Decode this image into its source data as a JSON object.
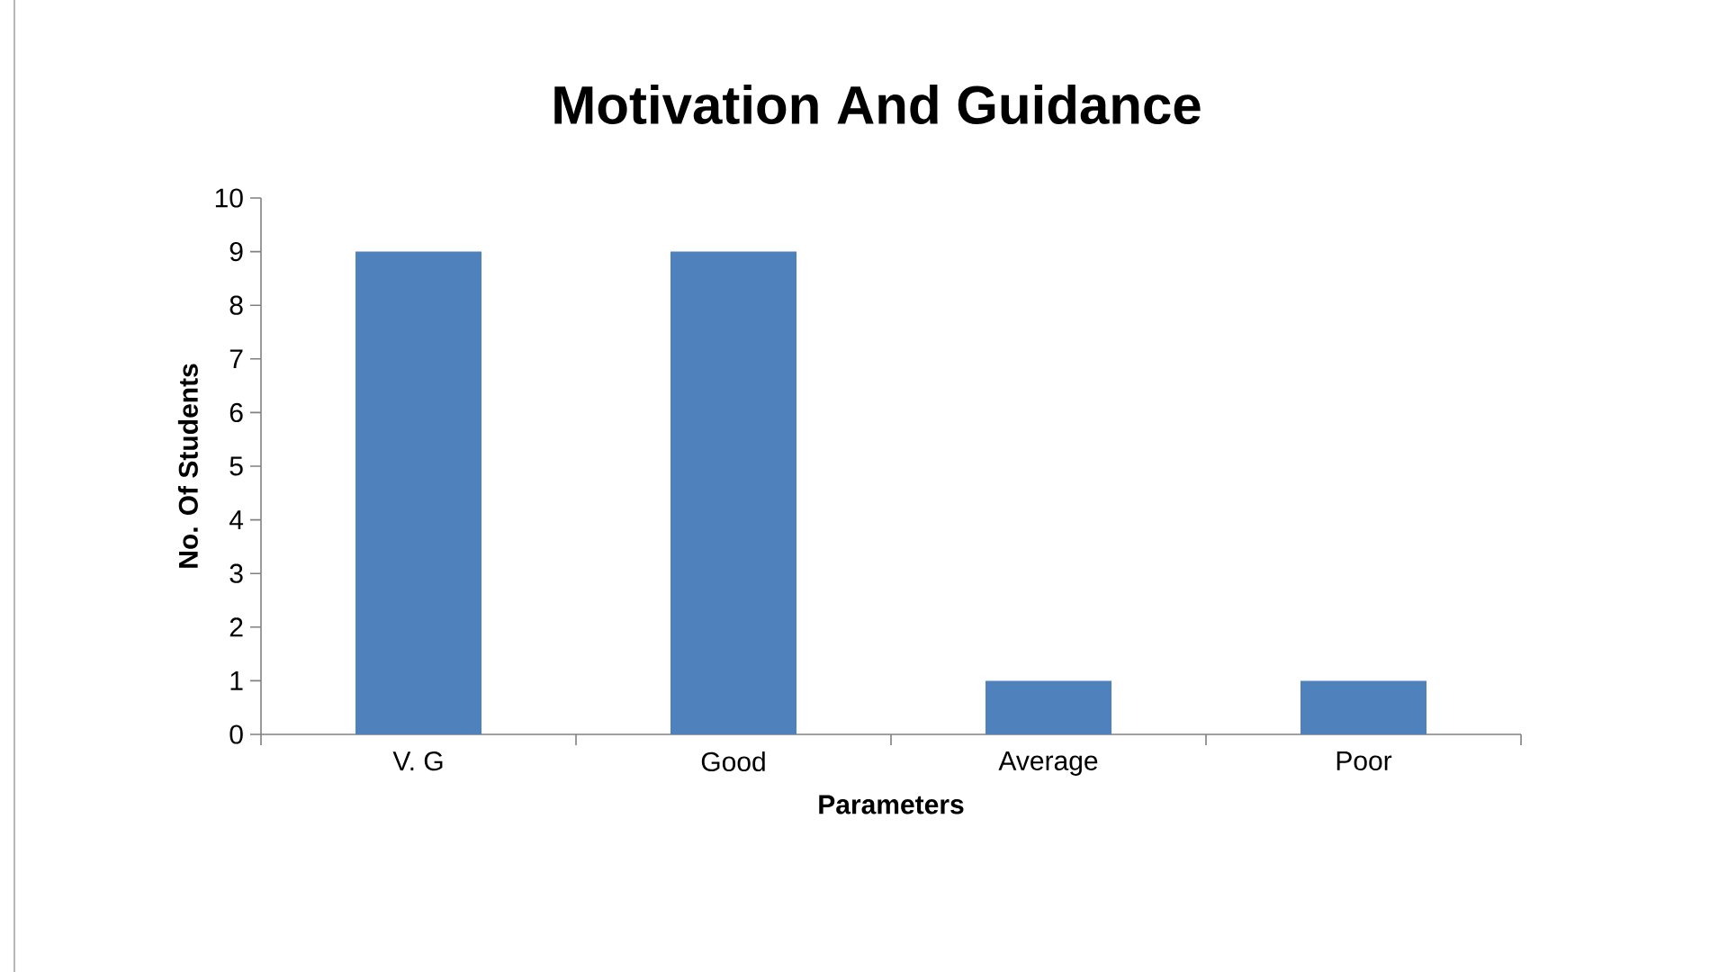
{
  "chart_data": {
    "type": "bar",
    "title": "Motivation And Guidance",
    "xlabel": "Parameters",
    "ylabel": "No. Of Students",
    "categories": [
      "V. G",
      "Good",
      "Average",
      "Poor"
    ],
    "values": [
      9,
      9,
      1,
      1
    ],
    "color": "#4f81bd",
    "ylim": [
      0,
      10
    ],
    "yticks": [
      0,
      1,
      2,
      3,
      4,
      5,
      6,
      7,
      8,
      9,
      10
    ],
    "grid": false
  }
}
